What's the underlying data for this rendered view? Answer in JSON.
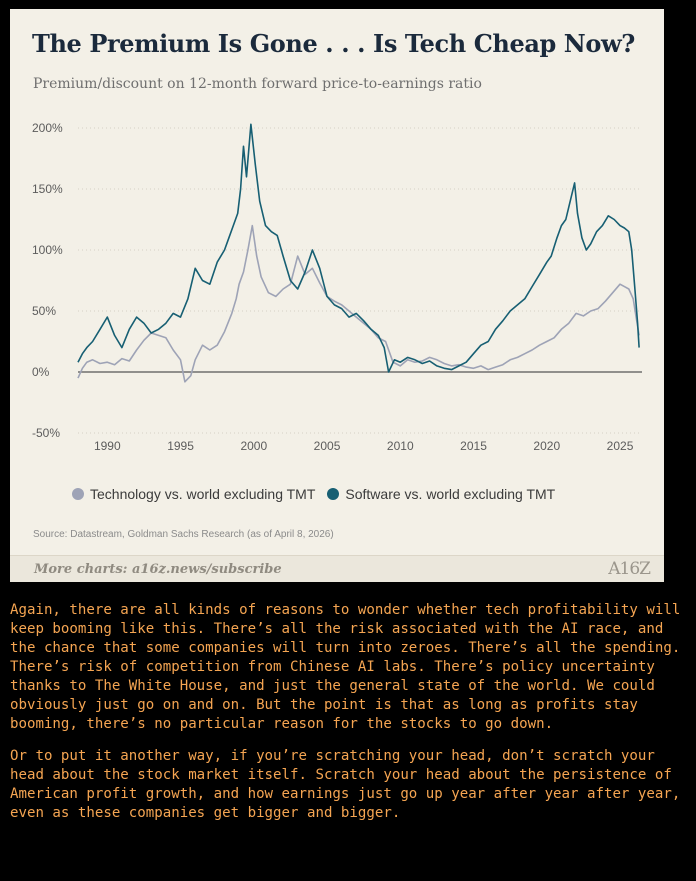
{
  "chart": {
    "title": "The Premium Is Gone . . . Is Tech Cheap Now?",
    "subtitle": "Premium/discount on 12-month forward price-to-earnings ratio",
    "source": "Source: Datastream, Goldman Sachs Research (as of April 8, 2026)",
    "footer": "More charts: a16z.news/subscribe",
    "brand": "A16Z"
  },
  "colors": {
    "card_background": "#f3f0e7",
    "technology": "#9ea3b6",
    "software": "#175f73",
    "article_text": "#f5a552"
  },
  "chart_data": {
    "type": "line",
    "title": "The Premium Is Gone . . . Is Tech Cheap Now?",
    "subtitle": "Premium/discount on 12-month forward price-to-earnings ratio",
    "xlabel": "",
    "ylabel": "",
    "xlim": [
      1988,
      2026.5
    ],
    "ylim": [
      -50,
      200
    ],
    "x_ticks": [
      1990,
      1995,
      2000,
      2005,
      2010,
      2015,
      2020,
      2025
    ],
    "y_ticks": [
      -50,
      0,
      50,
      100,
      150,
      200
    ],
    "y_tick_labels": [
      "-50%",
      "0%",
      "50%",
      "100%",
      "150%",
      "200%"
    ],
    "grid": "horizontal dotted",
    "legend_position": "bottom",
    "series": [
      {
        "name": "Technology vs. world excluding TMT",
        "color": "#9ea3b6",
        "x": [
          1988.0,
          1988.3,
          1988.6,
          1989.0,
          1989.5,
          1990.0,
          1990.5,
          1991.0,
          1991.5,
          1992.0,
          1992.5,
          1993.0,
          1993.5,
          1994.0,
          1994.5,
          1995.0,
          1995.3,
          1995.7,
          1996.0,
          1996.5,
          1997.0,
          1997.5,
          1998.0,
          1998.5,
          1998.8,
          1999.0,
          1999.3,
          1999.6,
          1999.9,
          2000.2,
          2000.5,
          2001.0,
          2001.5,
          2002.0,
          2002.5,
          2003.0,
          2003.5,
          2004.0,
          2004.5,
          2005.0,
          2005.5,
          2006.0,
          2006.5,
          2007.0,
          2007.5,
          2008.0,
          2008.5,
          2009.0,
          2009.5,
          2010.0,
          2010.5,
          2011.0,
          2011.5,
          2012.0,
          2012.5,
          2013.0,
          2013.5,
          2014.0,
          2014.5,
          2015.0,
          2015.5,
          2016.0,
          2016.5,
          2017.0,
          2017.5,
          2018.0,
          2018.5,
          2019.0,
          2019.5,
          2020.0,
          2020.5,
          2021.0,
          2021.5,
          2022.0,
          2022.5,
          2023.0,
          2023.5,
          2024.0,
          2024.5,
          2025.0,
          2025.3,
          2025.6,
          2025.9,
          2026.1,
          2026.3
        ],
        "values": [
          -5,
          3,
          8,
          10,
          7,
          8,
          6,
          11,
          9,
          18,
          26,
          32,
          30,
          28,
          18,
          10,
          -8,
          -3,
          10,
          22,
          18,
          22,
          33,
          48,
          60,
          72,
          82,
          100,
          120,
          95,
          78,
          65,
          62,
          68,
          72,
          95,
          80,
          85,
          73,
          62,
          58,
          55,
          50,
          45,
          40,
          35,
          28,
          25,
          8,
          5,
          10,
          8,
          9,
          12,
          10,
          7,
          5,
          6,
          4,
          3,
          5,
          2,
          4,
          6,
          10,
          12,
          15,
          18,
          22,
          25,
          28,
          35,
          40,
          48,
          46,
          50,
          52,
          58,
          65,
          72,
          70,
          68,
          60,
          45,
          30
        ]
      },
      {
        "name": "Software vs. world excluding TMT",
        "color": "#175f73",
        "x": [
          1988.0,
          1988.3,
          1988.6,
          1989.0,
          1989.5,
          1990.0,
          1990.5,
          1991.0,
          1991.5,
          1992.0,
          1992.5,
          1993.0,
          1993.5,
          1994.0,
          1994.5,
          1995.0,
          1995.5,
          1996.0,
          1996.5,
          1997.0,
          1997.5,
          1998.0,
          1998.3,
          1998.6,
          1998.9,
          1999.1,
          1999.3,
          1999.5,
          1999.8,
          2000.1,
          2000.4,
          2000.8,
          2001.2,
          2001.6,
          2002.0,
          2002.5,
          2003.0,
          2003.5,
          2004.0,
          2004.5,
          2005.0,
          2005.5,
          2006.0,
          2006.5,
          2007.0,
          2007.5,
          2008.0,
          2008.5,
          2008.9,
          2009.2,
          2009.6,
          2010.0,
          2010.5,
          2011.0,
          2011.5,
          2012.0,
          2012.5,
          2013.0,
          2013.5,
          2014.0,
          2014.5,
          2015.0,
          2015.5,
          2016.0,
          2016.5,
          2017.0,
          2017.5,
          2018.0,
          2018.5,
          2019.0,
          2019.5,
          2020.0,
          2020.3,
          2020.7,
          2021.0,
          2021.3,
          2021.6,
          2021.9,
          2022.1,
          2022.4,
          2022.7,
          2023.0,
          2023.4,
          2023.8,
          2024.2,
          2024.6,
          2025.0,
          2025.3,
          2025.6,
          2025.8,
          2026.0,
          2026.2,
          2026.3
        ],
        "values": [
          8,
          15,
          20,
          25,
          35,
          45,
          30,
          20,
          35,
          45,
          40,
          32,
          35,
          40,
          48,
          45,
          60,
          85,
          75,
          72,
          90,
          100,
          110,
          120,
          130,
          150,
          185,
          160,
          203,
          170,
          140,
          120,
          115,
          112,
          95,
          75,
          68,
          82,
          100,
          85,
          62,
          55,
          52,
          45,
          48,
          42,
          35,
          30,
          20,
          0,
          10,
          8,
          12,
          10,
          7,
          9,
          5,
          3,
          2,
          5,
          8,
          15,
          22,
          25,
          35,
          42,
          50,
          55,
          60,
          70,
          80,
          90,
          95,
          110,
          120,
          125,
          140,
          155,
          130,
          110,
          100,
          105,
          115,
          120,
          128,
          125,
          120,
          118,
          115,
          100,
          70,
          40,
          20
        ]
      }
    ]
  },
  "article": {
    "paragraphs": [
      "Again, there are all kinds of reasons to wonder whether tech profitability will keep booming like this. There’s all the risk associated with the AI race, and the chance that some companies will turn into zeroes. There’s all the spending. There’s risk of competition from Chinese AI labs. There’s policy uncertainty thanks to The White House, and just the general state of the world. We could obviously just go on and on. But the point is that as long as profits stay booming, there’s no particular reason for the stocks to go down.",
      "Or to put it another way, if you’re scratching your head, don’t scratch your head about the stock market itself. Scratch your head about the persistence of American profit growth, and how earnings just go up year after year after year, even as these companies get bigger and bigger."
    ]
  }
}
